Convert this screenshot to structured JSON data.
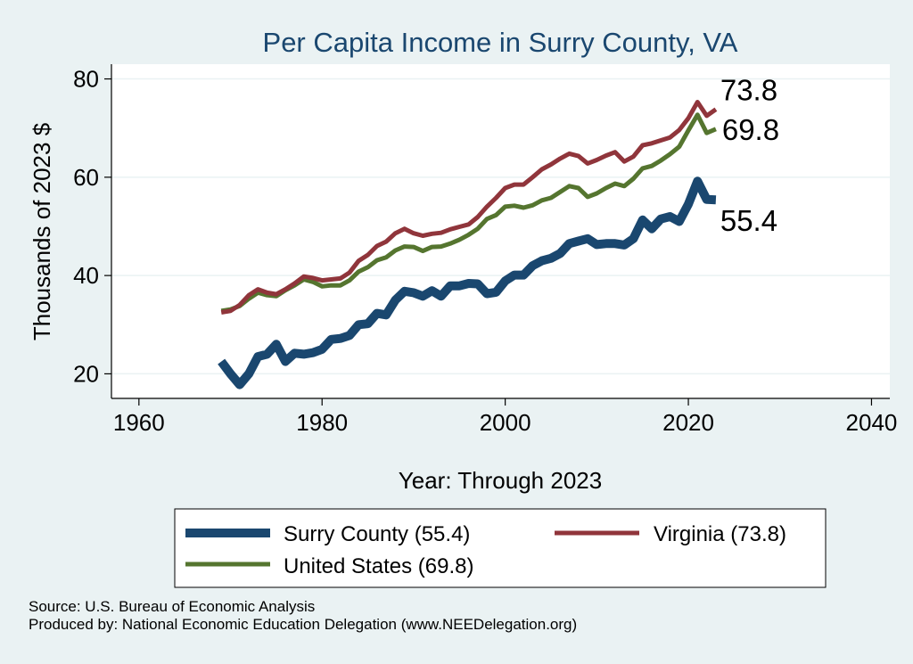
{
  "chart_data": {
    "type": "line",
    "title": "Per Capita Income in Surry County, VA",
    "xlabel": "Year: Through 2023",
    "ylabel": "Thousands of 2023 $",
    "xlim": [
      1957,
      2042
    ],
    "ylim": [
      15,
      83
    ],
    "x_ticks": [
      1960,
      1980,
      2000,
      2020,
      2040
    ],
    "y_ticks": [
      20,
      40,
      60,
      80
    ],
    "grid": true,
    "legend_position": "bottom",
    "x": [
      1969,
      1970,
      1971,
      1972,
      1973,
      1974,
      1975,
      1976,
      1977,
      1978,
      1979,
      1980,
      1981,
      1982,
      1983,
      1984,
      1985,
      1986,
      1987,
      1988,
      1989,
      1990,
      1991,
      1992,
      1993,
      1994,
      1995,
      1996,
      1997,
      1998,
      1999,
      2000,
      2001,
      2002,
      2003,
      2004,
      2005,
      2006,
      2007,
      2008,
      2009,
      2010,
      2011,
      2012,
      2013,
      2014,
      2015,
      2016,
      2017,
      2018,
      2019,
      2020,
      2021,
      2022,
      2023
    ],
    "series": [
      {
        "name": "Surry County (55.4)",
        "color": "#1a476f",
        "end_label": "55.4",
        "values": [
          22.5,
          20.0,
          17.8,
          20.0,
          23.5,
          24.0,
          26.0,
          22.5,
          24.2,
          24.0,
          24.3,
          25.0,
          27.0,
          27.2,
          27.8,
          30.0,
          30.2,
          32.3,
          32.0,
          35.0,
          36.8,
          36.5,
          35.8,
          36.9,
          35.8,
          37.9,
          37.9,
          38.4,
          38.3,
          36.3,
          36.6,
          38.9,
          40.1,
          40.1,
          42.0,
          43.0,
          43.5,
          44.5,
          46.5,
          47.0,
          47.5,
          46.3,
          46.5,
          46.5,
          46.2,
          47.5,
          51.3,
          49.5,
          51.5,
          52.0,
          51.0,
          54.5,
          59.2,
          55.5,
          55.4
        ]
      },
      {
        "name": "Virginia (73.8)",
        "color": "#90353b",
        "end_label": "73.8",
        "values": [
          32.5,
          32.8,
          34.0,
          36.0,
          37.2,
          36.5,
          36.2,
          37.2,
          38.4,
          39.8,
          39.5,
          39.0,
          39.2,
          39.4,
          40.6,
          43.0,
          44.2,
          46.0,
          46.9,
          48.6,
          49.5,
          48.6,
          48.1,
          48.5,
          48.7,
          49.4,
          49.9,
          50.4,
          51.9,
          54.0,
          55.8,
          57.8,
          58.5,
          58.5,
          60.0,
          61.6,
          62.6,
          63.8,
          64.8,
          64.3,
          62.8,
          63.5,
          64.4,
          65.1,
          63.2,
          64.2,
          66.5,
          66.9,
          67.5,
          68.1,
          69.6,
          72.0,
          75.3,
          72.5,
          73.8
        ]
      },
      {
        "name": "United States (69.8)",
        "color": "#55752f",
        "end_label": "69.8",
        "values": [
          32.8,
          33.1,
          33.8,
          35.3,
          36.5,
          36.0,
          35.8,
          37.0,
          38.0,
          39.2,
          38.7,
          37.8,
          38.0,
          38.0,
          39.0,
          40.8,
          41.7,
          43.1,
          43.7,
          45.1,
          45.9,
          45.8,
          45.0,
          45.8,
          45.9,
          46.5,
          47.3,
          48.3,
          49.5,
          51.5,
          52.3,
          54.0,
          54.2,
          53.8,
          54.3,
          55.3,
          55.8,
          57.0,
          58.2,
          57.8,
          56.0,
          56.7,
          57.8,
          58.7,
          58.2,
          59.7,
          61.8,
          62.3,
          63.4,
          64.7,
          66.2,
          69.5,
          72.7,
          69.0,
          69.8
        ]
      }
    ]
  },
  "notes": {
    "source": "Source: U.S. Bureau of Economic Analysis",
    "produced_by": "Produced by: National Economic Education Delegation (www.NEEDelegation.org)"
  }
}
